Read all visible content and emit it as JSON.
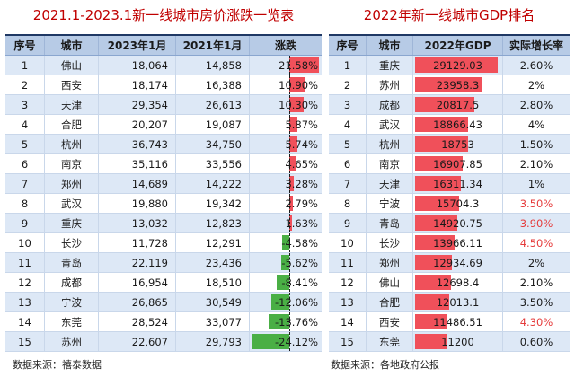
{
  "left": {
    "title": "2021.1-2023.1新一线城市房价涨跌一览表",
    "headers": [
      "序号",
      "城市",
      "2023年1月",
      "2021年1月",
      "涨跌"
    ],
    "rows": [
      {
        "no": "1",
        "city": "佛山",
        "p2023": "18,064",
        "p2021": "14,858",
        "change": "21.58%",
        "change_value": 21.58
      },
      {
        "no": "2",
        "city": "西安",
        "p2023": "18,174",
        "p2021": "16,388",
        "change": "10.90%",
        "change_value": 10.9
      },
      {
        "no": "3",
        "city": "天津",
        "p2023": "29,354",
        "p2021": "26,613",
        "change": "10.30%",
        "change_value": 10.3
      },
      {
        "no": "4",
        "city": "合肥",
        "p2023": "20,207",
        "p2021": "19,087",
        "change": "5.87%",
        "change_value": 5.87
      },
      {
        "no": "5",
        "city": "杭州",
        "p2023": "36,743",
        "p2021": "34,750",
        "change": "5.74%",
        "change_value": 5.74
      },
      {
        "no": "6",
        "city": "南京",
        "p2023": "35,116",
        "p2021": "33,556",
        "change": "4.65%",
        "change_value": 4.65
      },
      {
        "no": "7",
        "city": "郑州",
        "p2023": "14,689",
        "p2021": "14,222",
        "change": "3.28%",
        "change_value": 3.28
      },
      {
        "no": "8",
        "city": "武汉",
        "p2023": "19,880",
        "p2021": "19,342",
        "change": "2.79%",
        "change_value": 2.79
      },
      {
        "no": "9",
        "city": "重庆",
        "p2023": "13,032",
        "p2021": "12,823",
        "change": "1.63%",
        "change_value": 1.63
      },
      {
        "no": "10",
        "city": "长沙",
        "p2023": "11,728",
        "p2021": "12,291",
        "change": "-4.58%",
        "change_value": -4.58
      },
      {
        "no": "11",
        "city": "青岛",
        "p2023": "22,119",
        "p2021": "23,436",
        "change": "-5.62%",
        "change_value": -5.62
      },
      {
        "no": "12",
        "city": "成都",
        "p2023": "16,954",
        "p2021": "18,510",
        "change": "-8.41%",
        "change_value": -8.41
      },
      {
        "no": "13",
        "city": "宁波",
        "p2023": "26,865",
        "p2021": "30,549",
        "change": "-12.06%",
        "change_value": -12.06
      },
      {
        "no": "14",
        "city": "东莞",
        "p2023": "28,524",
        "p2021": "33,077",
        "change": "-13.76%",
        "change_value": -13.76
      },
      {
        "no": "15",
        "city": "苏州",
        "p2023": "22,607",
        "p2021": "29,793",
        "change": "-24.12%",
        "change_value": -24.12
      }
    ],
    "source": "数据来源：禧泰数据",
    "colors": {
      "positive": "#f0505a",
      "negative": "#4aaf45"
    }
  },
  "right": {
    "title": "2022年新一线城市GDP排名",
    "headers": [
      "序号",
      "城市",
      "2022年GDP",
      "实际增长率"
    ],
    "rows": [
      {
        "no": "1",
        "city": "重庆",
        "gdp": "29129.03",
        "gdp_value": 29129.03,
        "growth": "2.60%",
        "highlight": false
      },
      {
        "no": "2",
        "city": "苏州",
        "gdp": "23958.3",
        "gdp_value": 23958.3,
        "growth": "2%",
        "highlight": false
      },
      {
        "no": "3",
        "city": "成都",
        "gdp": "20817.5",
        "gdp_value": 20817.5,
        "growth": "2.80%",
        "highlight": false
      },
      {
        "no": "4",
        "city": "武汉",
        "gdp": "18866.43",
        "gdp_value": 18866.43,
        "growth": "4%",
        "highlight": false
      },
      {
        "no": "5",
        "city": "杭州",
        "gdp": "18753",
        "gdp_value": 18753,
        "growth": "1.50%",
        "highlight": false
      },
      {
        "no": "6",
        "city": "南京",
        "gdp": "16907.85",
        "gdp_value": 16907.85,
        "growth": "2.10%",
        "highlight": false
      },
      {
        "no": "7",
        "city": "天津",
        "gdp": "16311.34",
        "gdp_value": 16311.34,
        "growth": "1%",
        "highlight": false
      },
      {
        "no": "8",
        "city": "宁波",
        "gdp": "15704.3",
        "gdp_value": 15704.3,
        "growth": "3.50%",
        "highlight": true
      },
      {
        "no": "9",
        "city": "青岛",
        "gdp": "14920.75",
        "gdp_value": 14920.75,
        "growth": "3.90%",
        "highlight": true
      },
      {
        "no": "10",
        "city": "长沙",
        "gdp": "13966.11",
        "gdp_value": 13966.11,
        "growth": "4.50%",
        "highlight": true
      },
      {
        "no": "11",
        "city": "郑州",
        "gdp": "12934.69",
        "gdp_value": 12934.69,
        "growth": "2%",
        "highlight": false
      },
      {
        "no": "12",
        "city": "佛山",
        "gdp": "12698.4",
        "gdp_value": 12698.4,
        "growth": "2.10%",
        "highlight": false
      },
      {
        "no": "13",
        "city": "合肥",
        "gdp": "12013.1",
        "gdp_value": 12013.1,
        "growth": "3.50%",
        "highlight": false
      },
      {
        "no": "14",
        "city": "西安",
        "gdp": "11486.51",
        "gdp_value": 11486.51,
        "growth": "4.30%",
        "highlight": true
      },
      {
        "no": "15",
        "city": "东莞",
        "gdp": "11200",
        "gdp_value": 11200,
        "growth": "0.60%",
        "highlight": false
      }
    ],
    "source": "数据来源：各地政府公报",
    "colors": {
      "bar": "#f0505a",
      "highlight_text": "#e53b3b"
    }
  }
}
